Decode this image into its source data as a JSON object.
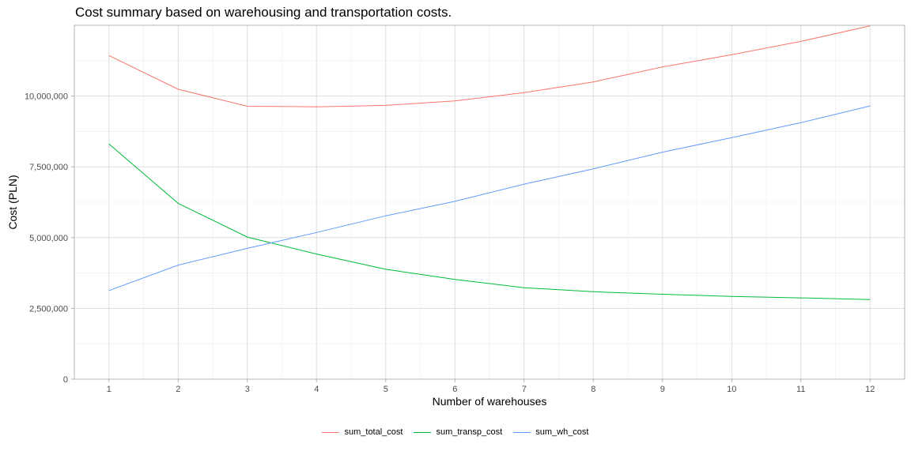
{
  "chart_data": {
    "type": "line",
    "title": "Cost summary based on warehousing and transportation costs.",
    "xlabel": "Number of warehouses",
    "ylabel": "Cost (PLN)",
    "x": [
      1,
      2,
      3,
      4,
      5,
      6,
      7,
      8,
      9,
      10,
      11,
      12
    ],
    "xlim": [
      0.5,
      12.5
    ],
    "ylim": [
      0,
      12500000
    ],
    "x_ticks": [
      "1",
      "2",
      "3",
      "4",
      "5",
      "6",
      "7",
      "8",
      "9",
      "10",
      "11",
      "12"
    ],
    "y_ticks": [
      {
        "value": 0,
        "label": "0"
      },
      {
        "value": 2500000,
        "label": "2,500,000"
      },
      {
        "value": 5000000,
        "label": "5,000,000"
      },
      {
        "value": 7500000,
        "label": "7,500,000"
      },
      {
        "value": 10000000,
        "label": "10,000,000"
      }
    ],
    "grid": true,
    "legend_position": "bottom",
    "series": [
      {
        "name": "sum_total_cost",
        "color": "#F8766D",
        "values": [
          11430000,
          10240000,
          9640000,
          9620000,
          9670000,
          9830000,
          10120000,
          10500000,
          11030000,
          11460000,
          11930000,
          12480000
        ]
      },
      {
        "name": "sum_transp_cost",
        "color": "#00BA38",
        "values": [
          8310000,
          6210000,
          5020000,
          4420000,
          3880000,
          3520000,
          3230000,
          3090000,
          3000000,
          2920000,
          2870000,
          2810000
        ]
      },
      {
        "name": "sum_wh_cost",
        "color": "#619CFF",
        "values": [
          3130000,
          4030000,
          4620000,
          5180000,
          5770000,
          6280000,
          6890000,
          7430000,
          8020000,
          8530000,
          9060000,
          9650000
        ]
      }
    ]
  }
}
